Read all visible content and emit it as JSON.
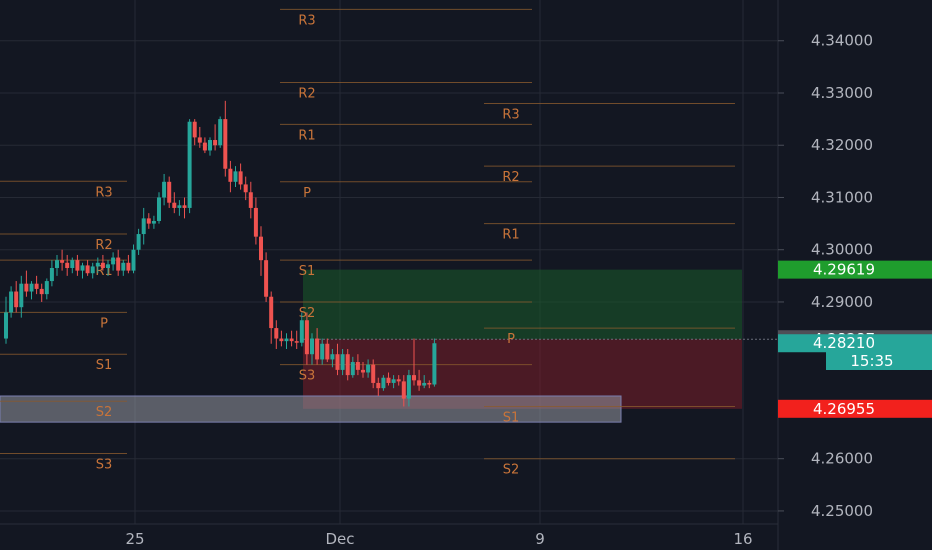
{
  "chart_data": {
    "type": "candlestick",
    "title": "",
    "ylim": [
      4.2475,
      4.3478
    ],
    "y_ticks": [
      "4.34000",
      "4.33000",
      "4.32000",
      "4.31000",
      "4.30000",
      "4.29000",
      "4.26000",
      "4.25000"
    ],
    "x_ticks": [
      "25",
      "Dec",
      "9",
      "16"
    ],
    "grid": true,
    "price_tags": [
      {
        "label": "4.29619",
        "value": 4.29619,
        "color": "#1f9d2d"
      },
      {
        "label": "4.28287",
        "value": 4.28287,
        "color": "#4e4f57"
      },
      {
        "label": "4.28210",
        "value": 4.2821,
        "color": "#26a69a"
      },
      {
        "label": "15:35",
        "value": 4.2787,
        "color": "#26a69a"
      },
      {
        "label": "4.26955",
        "value": 4.26955,
        "color": "#f2211d"
      }
    ],
    "pivot_labels": {
      "r3": "R3",
      "r2": "R2",
      "r1": "R1",
      "p": "P",
      "s1": "S1",
      "s2": "S2",
      "s3": "S3"
    },
    "pivot_periods": [
      {
        "R3": 4.3131,
        "R2": 4.303,
        "R1": 4.298,
        "P": 4.288,
        "S1": 4.28,
        "S2": 4.271,
        "S3": 4.261
      },
      {
        "R3": 4.346,
        "R2": 4.332,
        "R1": 4.324,
        "P": 4.313,
        "S1": 4.298,
        "S2": 4.29,
        "S3": 4.278
      },
      {
        "R3": 4.328,
        "R2": 4.316,
        "R1": 4.305,
        "P": 4.285,
        "S1": 4.27,
        "S2": 4.26
      }
    ],
    "long_position": {
      "entry": 4.28287,
      "target": 4.29619,
      "stop": 4.26955
    },
    "candles": [
      {
        "o": 4.283,
        "h": 4.291,
        "l": 4.282,
        "c": 4.288
      },
      {
        "o": 4.288,
        "h": 4.293,
        "l": 4.287,
        "c": 4.292
      },
      {
        "o": 4.292,
        "h": 4.294,
        "l": 4.288,
        "c": 4.289
      },
      {
        "o": 4.289,
        "h": 4.295,
        "l": 4.287,
        "c": 4.2935
      },
      {
        "o": 4.2935,
        "h": 4.296,
        "l": 4.291,
        "c": 4.292
      },
      {
        "o": 4.292,
        "h": 4.294,
        "l": 4.2905,
        "c": 4.2935
      },
      {
        "o": 4.2935,
        "h": 4.295,
        "l": 4.2915,
        "c": 4.2925
      },
      {
        "o": 4.2925,
        "h": 4.2935,
        "l": 4.29,
        "c": 4.2915
      },
      {
        "o": 4.2915,
        "h": 4.2945,
        "l": 4.2905,
        "c": 4.294
      },
      {
        "o": 4.294,
        "h": 4.298,
        "l": 4.293,
        "c": 4.2965
      },
      {
        "o": 4.2965,
        "h": 4.299,
        "l": 4.295,
        "c": 4.298
      },
      {
        "o": 4.298,
        "h": 4.3,
        "l": 4.296,
        "c": 4.2975
      },
      {
        "o": 4.2975,
        "h": 4.299,
        "l": 4.295,
        "c": 4.2965
      },
      {
        "o": 4.2965,
        "h": 4.2985,
        "l": 4.2955,
        "c": 4.298
      },
      {
        "o": 4.298,
        "h": 4.299,
        "l": 4.295,
        "c": 4.296
      },
      {
        "o": 4.296,
        "h": 4.2975,
        "l": 4.2945,
        "c": 4.297
      },
      {
        "o": 4.297,
        "h": 4.298,
        "l": 4.295,
        "c": 4.2955
      },
      {
        "o": 4.2955,
        "h": 4.2975,
        "l": 4.2945,
        "c": 4.2968
      },
      {
        "o": 4.2968,
        "h": 4.2985,
        "l": 4.2955,
        "c": 4.2975
      },
      {
        "o": 4.2975,
        "h": 4.299,
        "l": 4.296,
        "c": 4.2965
      },
      {
        "o": 4.2965,
        "h": 4.298,
        "l": 4.295,
        "c": 4.2972
      },
      {
        "o": 4.2972,
        "h": 4.2995,
        "l": 4.296,
        "c": 4.2985
      },
      {
        "o": 4.2985,
        "h": 4.3,
        "l": 4.295,
        "c": 4.296
      },
      {
        "o": 4.296,
        "h": 4.298,
        "l": 4.295,
        "c": 4.2975
      },
      {
        "o": 4.2975,
        "h": 4.299,
        "l": 4.2955,
        "c": 4.296
      },
      {
        "o": 4.296,
        "h": 4.301,
        "l": 4.2955,
        "c": 4.3
      },
      {
        "o": 4.3,
        "h": 4.304,
        "l": 4.299,
        "c": 4.303
      },
      {
        "o": 4.303,
        "h": 4.308,
        "l": 4.301,
        "c": 4.306
      },
      {
        "o": 4.306,
        "h": 4.307,
        "l": 4.304,
        "c": 4.305
      },
      {
        "o": 4.305,
        "h": 4.3065,
        "l": 4.304,
        "c": 4.3055
      },
      {
        "o": 4.3055,
        "h": 4.311,
        "l": 4.305,
        "c": 4.31
      },
      {
        "o": 4.31,
        "h": 4.3145,
        "l": 4.3085,
        "c": 4.313
      },
      {
        "o": 4.313,
        "h": 4.314,
        "l": 4.308,
        "c": 4.309
      },
      {
        "o": 4.309,
        "h": 4.311,
        "l": 4.307,
        "c": 4.308
      },
      {
        "o": 4.308,
        "h": 4.3095,
        "l": 4.3065,
        "c": 4.3085
      },
      {
        "o": 4.3085,
        "h": 4.31,
        "l": 4.306,
        "c": 4.308
      },
      {
        "o": 4.308,
        "h": 4.325,
        "l": 4.307,
        "c": 4.3245
      },
      {
        "o": 4.3245,
        "h": 4.325,
        "l": 4.32,
        "c": 4.3215
      },
      {
        "o": 4.3215,
        "h": 4.3235,
        "l": 4.3195,
        "c": 4.3205
      },
      {
        "o": 4.3205,
        "h": 4.3215,
        "l": 4.3185,
        "c": 4.319
      },
      {
        "o": 4.319,
        "h": 4.3215,
        "l": 4.318,
        "c": 4.321
      },
      {
        "o": 4.321,
        "h": 4.324,
        "l": 4.319,
        "c": 4.32
      },
      {
        "o": 4.32,
        "h": 4.3255,
        "l": 4.3195,
        "c": 4.325
      },
      {
        "o": 4.325,
        "h": 4.3285,
        "l": 4.314,
        "c": 4.3155
      },
      {
        "o": 4.3155,
        "h": 4.317,
        "l": 4.311,
        "c": 4.313
      },
      {
        "o": 4.313,
        "h": 4.316,
        "l": 4.312,
        "c": 4.315
      },
      {
        "o": 4.315,
        "h": 4.3165,
        "l": 4.3115,
        "c": 4.3125
      },
      {
        "o": 4.3125,
        "h": 4.314,
        "l": 4.3095,
        "c": 4.311
      },
      {
        "o": 4.311,
        "h": 4.313,
        "l": 4.306,
        "c": 4.308
      },
      {
        "o": 4.308,
        "h": 4.31,
        "l": 4.301,
        "c": 4.3025
      },
      {
        "o": 4.3025,
        "h": 4.3045,
        "l": 4.295,
        "c": 4.298
      },
      {
        "o": 4.298,
        "h": 4.2995,
        "l": 4.29,
        "c": 4.291
      },
      {
        "o": 4.291,
        "h": 4.292,
        "l": 4.282,
        "c": 4.285
      },
      {
        "o": 4.285,
        "h": 4.2865,
        "l": 4.281,
        "c": 4.283
      },
      {
        "o": 4.283,
        "h": 4.2845,
        "l": 4.2815,
        "c": 4.2825
      },
      {
        "o": 4.2825,
        "h": 4.284,
        "l": 4.281,
        "c": 4.283
      },
      {
        "o": 4.283,
        "h": 4.2845,
        "l": 4.2815,
        "c": 4.2825
      },
      {
        "o": 4.2825,
        "h": 4.2845,
        "l": 4.281,
        "c": 4.2822
      },
      {
        "o": 4.2822,
        "h": 4.288,
        "l": 4.2815,
        "c": 4.2865
      },
      {
        "o": 4.2865,
        "h": 4.288,
        "l": 4.278,
        "c": 4.28
      },
      {
        "o": 4.28,
        "h": 4.284,
        "l": 4.278,
        "c": 4.283
      },
      {
        "o": 4.283,
        "h": 4.285,
        "l": 4.278,
        "c": 4.279
      },
      {
        "o": 4.279,
        "h": 4.283,
        "l": 4.278,
        "c": 4.282
      },
      {
        "o": 4.282,
        "h": 4.283,
        "l": 4.2785,
        "c": 4.279
      },
      {
        "o": 4.279,
        "h": 4.281,
        "l": 4.2775,
        "c": 4.28
      },
      {
        "o": 4.28,
        "h": 4.282,
        "l": 4.276,
        "c": 4.277
      },
      {
        "o": 4.277,
        "h": 4.281,
        "l": 4.276,
        "c": 4.28
      },
      {
        "o": 4.28,
        "h": 4.281,
        "l": 4.275,
        "c": 4.276
      },
      {
        "o": 4.276,
        "h": 4.2795,
        "l": 4.2755,
        "c": 4.2785
      },
      {
        "o": 4.2785,
        "h": 4.28,
        "l": 4.276,
        "c": 4.277
      },
      {
        "o": 4.277,
        "h": 4.2785,
        "l": 4.2755,
        "c": 4.2765
      },
      {
        "o": 4.2765,
        "h": 4.279,
        "l": 4.2755,
        "c": 4.278
      },
      {
        "o": 4.278,
        "h": 4.279,
        "l": 4.2735,
        "c": 4.2745
      },
      {
        "o": 4.2745,
        "h": 4.2755,
        "l": 4.272,
        "c": 4.2735
      },
      {
        "o": 4.2735,
        "h": 4.276,
        "l": 4.273,
        "c": 4.2755
      },
      {
        "o": 4.2755,
        "h": 4.2765,
        "l": 4.274,
        "c": 4.2745
      },
      {
        "o": 4.2745,
        "h": 4.276,
        "l": 4.2735,
        "c": 4.2752
      },
      {
        "o": 4.2752,
        "h": 4.276,
        "l": 4.274,
        "c": 4.2748
      },
      {
        "o": 4.2748,
        "h": 4.276,
        "l": 4.27,
        "c": 4.2715
      },
      {
        "o": 4.2715,
        "h": 4.277,
        "l": 4.27,
        "c": 4.276
      },
      {
        "o": 4.276,
        "h": 4.283,
        "l": 4.274,
        "c": 4.275
      },
      {
        "o": 4.275,
        "h": 4.277,
        "l": 4.273,
        "c": 4.274
      },
      {
        "o": 4.274,
        "h": 4.276,
        "l": 4.2735,
        "c": 4.2745
      },
      {
        "o": 4.2745,
        "h": 4.275,
        "l": 4.2735,
        "c": 4.2742
      },
      {
        "o": 4.2742,
        "h": 4.283,
        "l": 4.2738,
        "c": 4.2821
      }
    ]
  }
}
